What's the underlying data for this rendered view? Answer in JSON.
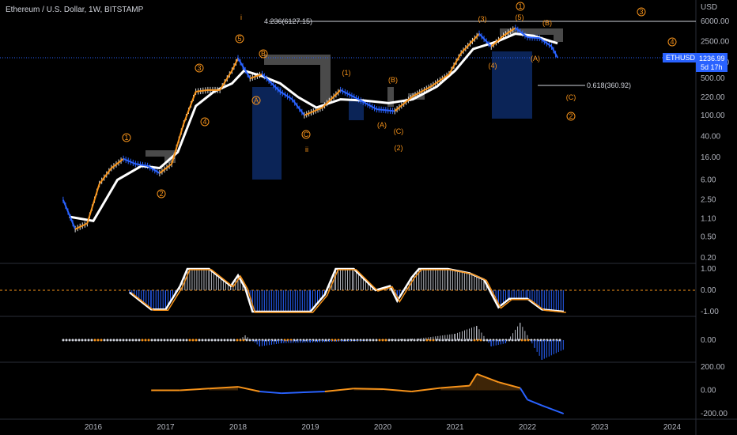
{
  "header": {
    "title": "Ethereum / U.S. Dollar, 1W, BITSTAMP"
  },
  "price_axis": {
    "currency": "USD",
    "ticks": [
      "6000.00",
      "2500.00",
      "1000.00",
      "500.00",
      "220.00",
      "100.00",
      "40.00",
      "16.00",
      "6.00",
      "2.50",
      "1.10",
      "0.50",
      "0.20"
    ]
  },
  "symbol_badge": {
    "symbol": "ETHUSD",
    "price": "1236.99",
    "countdown": "5d 17h"
  },
  "fib_labels": {
    "upper": "4.236(6127.15)",
    "lower": "0.618(360.92)"
  },
  "wave_labels": {
    "w1": "1",
    "w2": "2",
    "w3": "3",
    "w4": "4",
    "w5": "5",
    "i": "i",
    "ii": "ii",
    "A": "A",
    "B": "B",
    "C": "C",
    "p1": "(1)",
    "p2": "(2)",
    "p3": "(3)",
    "p4": "(4)",
    "p5": "(5)",
    "pA": "(A)",
    "pB": "(B)",
    "pC": "(C)",
    "f1": "1",
    "f2": "2",
    "f3": "3",
    "f4": "4"
  },
  "osc1": {
    "ticks": [
      "1.00",
      "0.00",
      "-1.00"
    ]
  },
  "osc2": {
    "ticks": [
      "0.00"
    ]
  },
  "osc3": {
    "ticks": [
      "200.00",
      "0.00",
      "-200.00"
    ]
  },
  "time_axis": {
    "ticks": [
      "2016",
      "2017",
      "2018",
      "2019",
      "2020",
      "2021",
      "2022",
      "2023",
      "2024"
    ]
  },
  "colors": {
    "background": "#000000",
    "price_line": "#ffffff",
    "ma_bull": "#f7931a",
    "ma_bear": "#2962ff",
    "wave": "#f7931a",
    "zone": "#0d2a66",
    "resistance": "#4a4a4a",
    "badge": "#2962ff"
  },
  "chart_data": {
    "type": "line",
    "title": "Ethereum / U.S. Dollar, 1W, BITSTAMP",
    "yscale": "log",
    "ylim": [
      0.2,
      8000
    ],
    "xlim": [
      "2015-08",
      "2024-06"
    ],
    "series": [
      {
        "values": [
          [
            "2015-08",
            2.5
          ],
          [
            "2015-10",
            0.7
          ],
          [
            "2015-12",
            0.9
          ],
          [
            "2016-02",
            5
          ],
          [
            "2016-04",
            10
          ],
          [
            "2016-06",
            15
          ],
          [
            "2016-08",
            12
          ],
          [
            "2016-10",
            11
          ],
          [
            "2016-12",
            8
          ],
          [
            "2017-02",
            12
          ],
          [
            "2017-04",
            70
          ],
          [
            "2017-06",
            280
          ],
          [
            "2017-08",
            300
          ],
          [
            "2017-10",
            300
          ],
          [
            "2017-12",
            700
          ],
          [
            "2018-01",
            1200
          ],
          [
            "2018-03",
            500
          ],
          [
            "2018-05",
            600
          ],
          [
            "2018-08",
            280
          ],
          [
            "2018-10",
            200
          ],
          [
            "2018-12",
            100
          ],
          [
            "2019-03",
            140
          ],
          [
            "2019-06",
            300
          ],
          [
            "2019-09",
            200
          ],
          [
            "2019-12",
            130
          ],
          [
            "2020-03",
            120
          ],
          [
            "2020-06",
            230
          ],
          [
            "2020-09",
            350
          ],
          [
            "2020-12",
            600
          ],
          [
            "2021-02",
            1500
          ],
          [
            "2021-05",
            3500
          ],
          [
            "2021-07",
            2000
          ],
          [
            "2021-09",
            3200
          ],
          [
            "2021-11",
            4500
          ],
          [
            "2022-01",
            3000
          ],
          [
            "2022-03",
            2900
          ],
          [
            "2022-05",
            2000
          ],
          [
            "2022-06",
            1237
          ]
        ]
      },
      {
        "values": [
          [
            "2015-09",
            1.2
          ],
          [
            "2016-01",
            1.0
          ],
          [
            "2016-05",
            6
          ],
          [
            "2016-09",
            11
          ],
          [
            "2016-12",
            10
          ],
          [
            "2017-03",
            20
          ],
          [
            "2017-06",
            150
          ],
          [
            "2017-09",
            280
          ],
          [
            "2017-12",
            400
          ],
          [
            "2018-02",
            700
          ],
          [
            "2018-05",
            550
          ],
          [
            "2018-08",
            400
          ],
          [
            "2018-11",
            220
          ],
          [
            "2019-02",
            140
          ],
          [
            "2019-06",
            200
          ],
          [
            "2019-10",
            190
          ],
          [
            "2020-02",
            170
          ],
          [
            "2020-06",
            200
          ],
          [
            "2020-10",
            350
          ],
          [
            "2021-01",
            700
          ],
          [
            "2021-04",
            1800
          ],
          [
            "2021-08",
            2500
          ],
          [
            "2021-11",
            3500
          ],
          [
            "2022-02",
            3200
          ],
          [
            "2022-06",
            2300
          ]
        ]
      }
    ],
    "levels": [
      {
        "label": "4.236(6127.15)",
        "value": 6127.15
      },
      {
        "label": "0.618(360.92)",
        "value": 360.92
      }
    ],
    "last_price": 1236.99
  }
}
